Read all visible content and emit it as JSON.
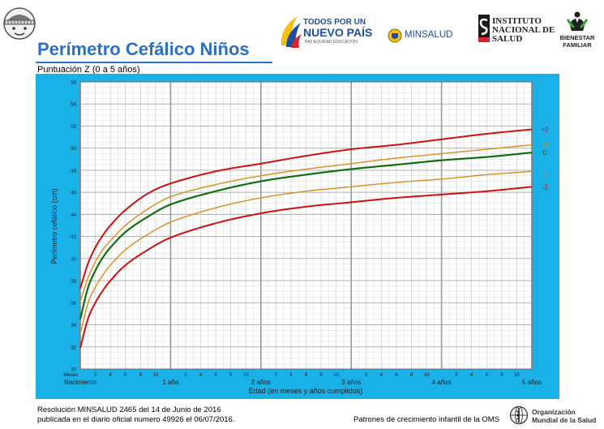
{
  "header": {
    "title": "Perímetro Cefálico Niños",
    "subtitle": "Puntuación Z (0 a 5 años)",
    "logos": {
      "todos": {
        "line1": "TODOS POR UN",
        "line2": "NUEVO PAÍS",
        "line3": "PAZ  EQUIDAD  EDUCACIÓN"
      },
      "minsalud": "MINSALUD",
      "ins": {
        "line1": "INSTITUTO",
        "line2": "NACIONAL DE",
        "line3": "SALUD"
      },
      "bienestar": {
        "line1": "BIENESTAR",
        "line2": "FAMILIAR"
      }
    }
  },
  "footer": {
    "resolution_line1": "Resolución MINSALUD 2465 del 14 de Junio de 2016",
    "resolution_line2": "publicada en el diario oficial numero 49926 el 06/07/2016.",
    "patrones": "Patrones de crecimiento infantil de la OMS",
    "oms_line1": "Organización",
    "oms_line2": "Mundial de la Salud"
  },
  "chart_data": {
    "type": "line",
    "title": "Perímetro Cefálico Niños",
    "subtitle": "Puntuación Z (0 a 5 años)",
    "xlabel": "Edad (en meses y años cumplidos)",
    "ylabel": "Perímetro cefálico (cm)",
    "xlim": [
      0,
      60
    ],
    "ylim": [
      30,
      56
    ],
    "ymajor_ticks": [
      30,
      32,
      34,
      36,
      38,
      40,
      42,
      44,
      46,
      48,
      50,
      52,
      54,
      56
    ],
    "xmonth_label": "Meses",
    "xmonth_ticks": [
      2,
      4,
      6,
      8,
      10
    ],
    "xyear_labels": [
      {
        "x": 0,
        "label": "Nacimiento"
      },
      {
        "x": 12,
        "label": "1 año"
      },
      {
        "x": 24,
        "label": "2 años"
      },
      {
        "x": 36,
        "label": "3 años"
      },
      {
        "x": 48,
        "label": "4 años"
      },
      {
        "x": 60,
        "label": "5 años"
      }
    ],
    "x": [
      0,
      1,
      2,
      3,
      4,
      6,
      9,
      12,
      18,
      24,
      30,
      36,
      42,
      48,
      54,
      60
    ],
    "series": [
      {
        "name": "+2",
        "color": "#cc1111",
        "values": [
          37.3,
          39.5,
          41.0,
          42.1,
          43.0,
          44.4,
          45.9,
          46.8,
          47.9,
          48.6,
          49.3,
          49.9,
          50.3,
          50.8,
          51.3,
          51.7
        ]
      },
      {
        "name": "+1",
        "color": "#d98c1a",
        "values": [
          36.1,
          38.2,
          39.7,
          40.8,
          41.6,
          43.0,
          44.5,
          45.6,
          46.7,
          47.5,
          48.1,
          48.6,
          49.1,
          49.5,
          49.9,
          50.3
        ]
      },
      {
        "name": "0",
        "color": "#0f6e14",
        "values": [
          34.5,
          37.3,
          38.9,
          40.1,
          41.0,
          42.4,
          43.8,
          44.9,
          46.1,
          47.0,
          47.6,
          48.1,
          48.5,
          48.9,
          49.2,
          49.6
        ]
      },
      {
        "name": "-1",
        "color": "#d98c1a",
        "values": [
          33.2,
          35.9,
          37.4,
          38.5,
          39.4,
          40.8,
          42.2,
          43.3,
          44.6,
          45.5,
          46.1,
          46.5,
          46.9,
          47.2,
          47.6,
          47.9
        ]
      },
      {
        "name": "-2",
        "color": "#cc1111",
        "values": [
          31.9,
          34.5,
          36.0,
          37.1,
          38.0,
          39.4,
          40.8,
          41.9,
          43.2,
          44.1,
          44.7,
          45.1,
          45.5,
          45.8,
          46.1,
          46.5
        ]
      }
    ],
    "grid": true,
    "legend": "right"
  }
}
